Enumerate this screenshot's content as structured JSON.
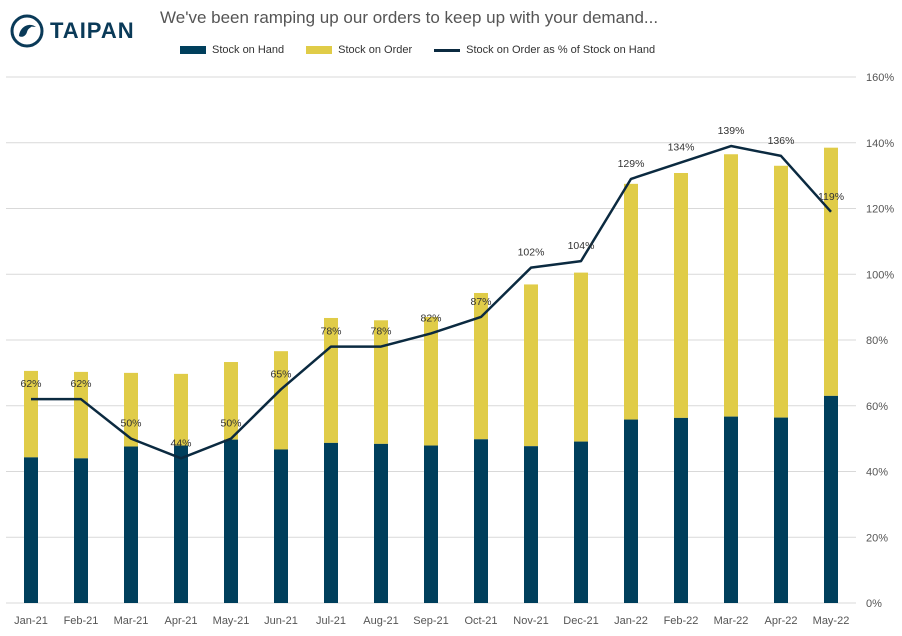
{
  "logo": {
    "text": "TAIPAN"
  },
  "colors": {
    "stock_on_hand": "#003f5c",
    "stock_on_order": "#e0cc48",
    "ratio_line": "#0b2a40",
    "grid": "#d9d9d9"
  },
  "chart_data": {
    "type": "bar",
    "title": "We've been ramping up our orders to keep up with your demand...",
    "stacked": true,
    "categories": [
      "Jan-21",
      "Feb-21",
      "Mar-21",
      "Apr-21",
      "May-21",
      "Jun-21",
      "Jul-21",
      "Aug-21",
      "Sep-21",
      "Oct-21",
      "Nov-21",
      "Dec-21",
      "Jan-22",
      "Feb-22",
      "Mar-22",
      "Apr-22",
      "May-22"
    ],
    "series": [
      {
        "name": "Stock on Hand",
        "type": "bar",
        "axis": "left",
        "values": [
          44.3,
          44.0,
          47.6,
          47.9,
          49.7,
          46.7,
          48.7,
          48.4,
          47.9,
          49.8,
          47.7,
          49.1,
          55.8,
          56.3,
          56.7,
          56.4,
          63.0
        ]
      },
      {
        "name": "Stock on Order",
        "type": "bar",
        "axis": "left",
        "values": [
          26.3,
          26.3,
          22.4,
          21.8,
          23.6,
          29.9,
          38.0,
          37.6,
          39.1,
          44.5,
          49.2,
          51.4,
          71.7,
          74.5,
          79.8,
          76.6,
          75.5
        ]
      },
      {
        "name": "Stock on Order as % of Stock on Hand",
        "type": "line",
        "axis": "right",
        "values": [
          62,
          62,
          50,
          44,
          50,
          65,
          78,
          78,
          82,
          87,
          102,
          104,
          129,
          134,
          139,
          136,
          119
        ],
        "labels": [
          "62%",
          "62%",
          "50%",
          "44%",
          "50%",
          "65%",
          "78%",
          "78%",
          "82%",
          "87%",
          "102%",
          "104%",
          "129%",
          "134%",
          "139%",
          "136%",
          "119%"
        ]
      }
    ],
    "y_left_range": [
      0,
      160
    ],
    "y_right_range": [
      0,
      160
    ],
    "y_right_ticks": [
      "0%",
      "20%",
      "40%",
      "60%",
      "80%",
      "100%",
      "120%",
      "140%",
      "160%"
    ],
    "grid": true,
    "legend_position": "top"
  }
}
